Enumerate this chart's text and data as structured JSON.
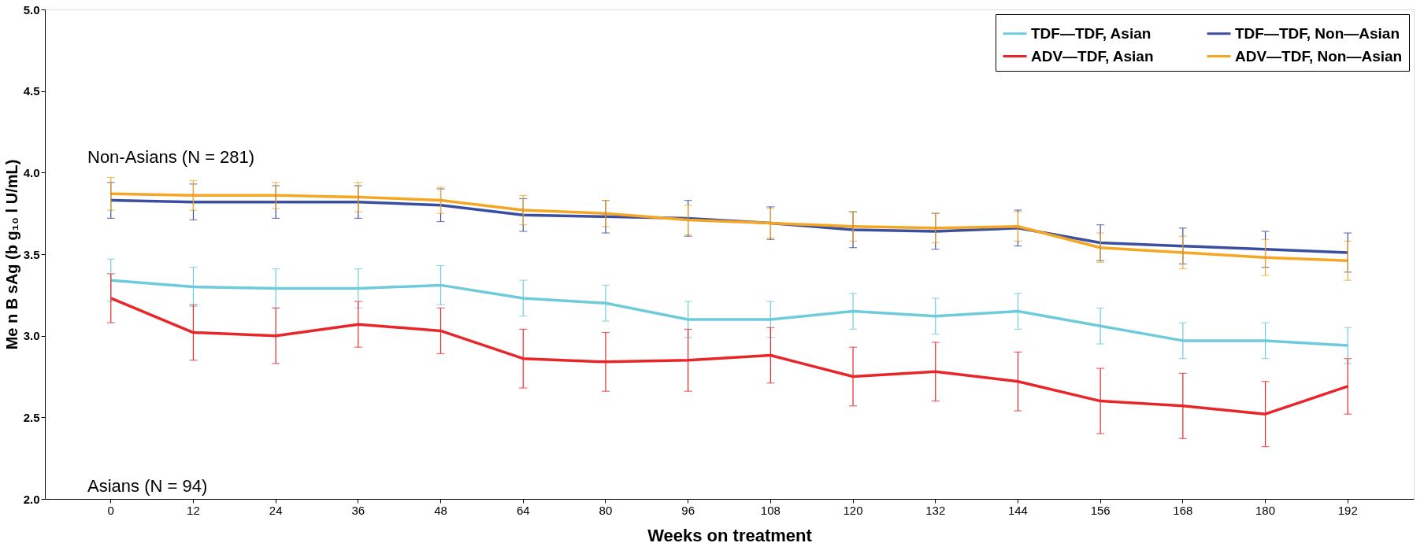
{
  "chart_data": {
    "type": "line",
    "xlabel": "Weeks on treatment",
    "ylabel": "Me n B sAg (b g₁₀ l U/mL)",
    "categories": [
      "0",
      "12",
      "24",
      "36",
      "48",
      "64",
      "80",
      "96",
      "108",
      "120",
      "132",
      "144",
      "156",
      "168",
      "180",
      "192"
    ],
    "ylim": [
      2.0,
      5.0
    ],
    "yticks": [
      {
        "value": 2,
        "label": "2.0"
      },
      2.5,
      {
        "value": 3,
        "label": "3.0"
      },
      3.5,
      {
        "value": 4,
        "label": "4.0"
      },
      4.5,
      {
        "value": 5,
        "label": "5.0"
      }
    ],
    "grid": false,
    "legend": "top right",
    "marker": "none",
    "line_style": "solid",
    "annotations": [
      "Non-Asians (N = 281)",
      "Asians (N = 94)"
    ],
    "series": [
      {
        "name": "TDF—TDF, Asian",
        "color": "#6ecbdc",
        "values": [
          3.34,
          3.3,
          3.29,
          3.29,
          3.31,
          3.23,
          3.2,
          3.1,
          3.1,
          3.15,
          3.12,
          3.15,
          3.06,
          2.97,
          2.97,
          2.94
        ],
        "errors": [
          0.13,
          0.12,
          0.12,
          0.12,
          0.12,
          0.11,
          0.11,
          0.11,
          0.11,
          0.11,
          0.11,
          0.11,
          0.11,
          0.11,
          0.11,
          0.11
        ]
      },
      {
        "name": "ADV—TDF, Asian",
        "color": "#e8262a",
        "values": [
          3.23,
          3.02,
          3.0,
          3.07,
          3.03,
          2.86,
          2.84,
          2.85,
          2.88,
          2.75,
          2.78,
          2.72,
          2.6,
          2.57,
          2.52,
          2.69
        ],
        "errors": [
          0.15,
          0.17,
          0.17,
          0.14,
          0.14,
          0.18,
          0.18,
          0.19,
          0.17,
          0.18,
          0.18,
          0.18,
          0.2,
          0.2,
          0.2,
          0.17
        ]
      },
      {
        "name": "TDF—TDF, Non—Asian",
        "color": "#3a4fa0",
        "values": [
          3.83,
          3.82,
          3.82,
          3.82,
          3.8,
          3.74,
          3.73,
          3.72,
          3.69,
          3.65,
          3.64,
          3.66,
          3.57,
          3.55,
          3.53,
          3.51
        ],
        "errors": [
          0.11,
          0.11,
          0.1,
          0.1,
          0.1,
          0.1,
          0.1,
          0.11,
          0.1,
          0.11,
          0.11,
          0.11,
          0.11,
          0.11,
          0.11,
          0.12
        ]
      },
      {
        "name": "ADV—TDF, Non—Asian",
        "color": "#f5a623",
        "values": [
          3.87,
          3.86,
          3.86,
          3.85,
          3.83,
          3.77,
          3.75,
          3.71,
          3.69,
          3.67,
          3.66,
          3.67,
          3.54,
          3.51,
          3.48,
          3.46
        ],
        "errors": [
          0.1,
          0.09,
          0.08,
          0.09,
          0.08,
          0.09,
          0.08,
          0.09,
          0.09,
          0.09,
          0.09,
          0.09,
          0.09,
          0.1,
          0.11,
          0.12
        ]
      }
    ]
  }
}
